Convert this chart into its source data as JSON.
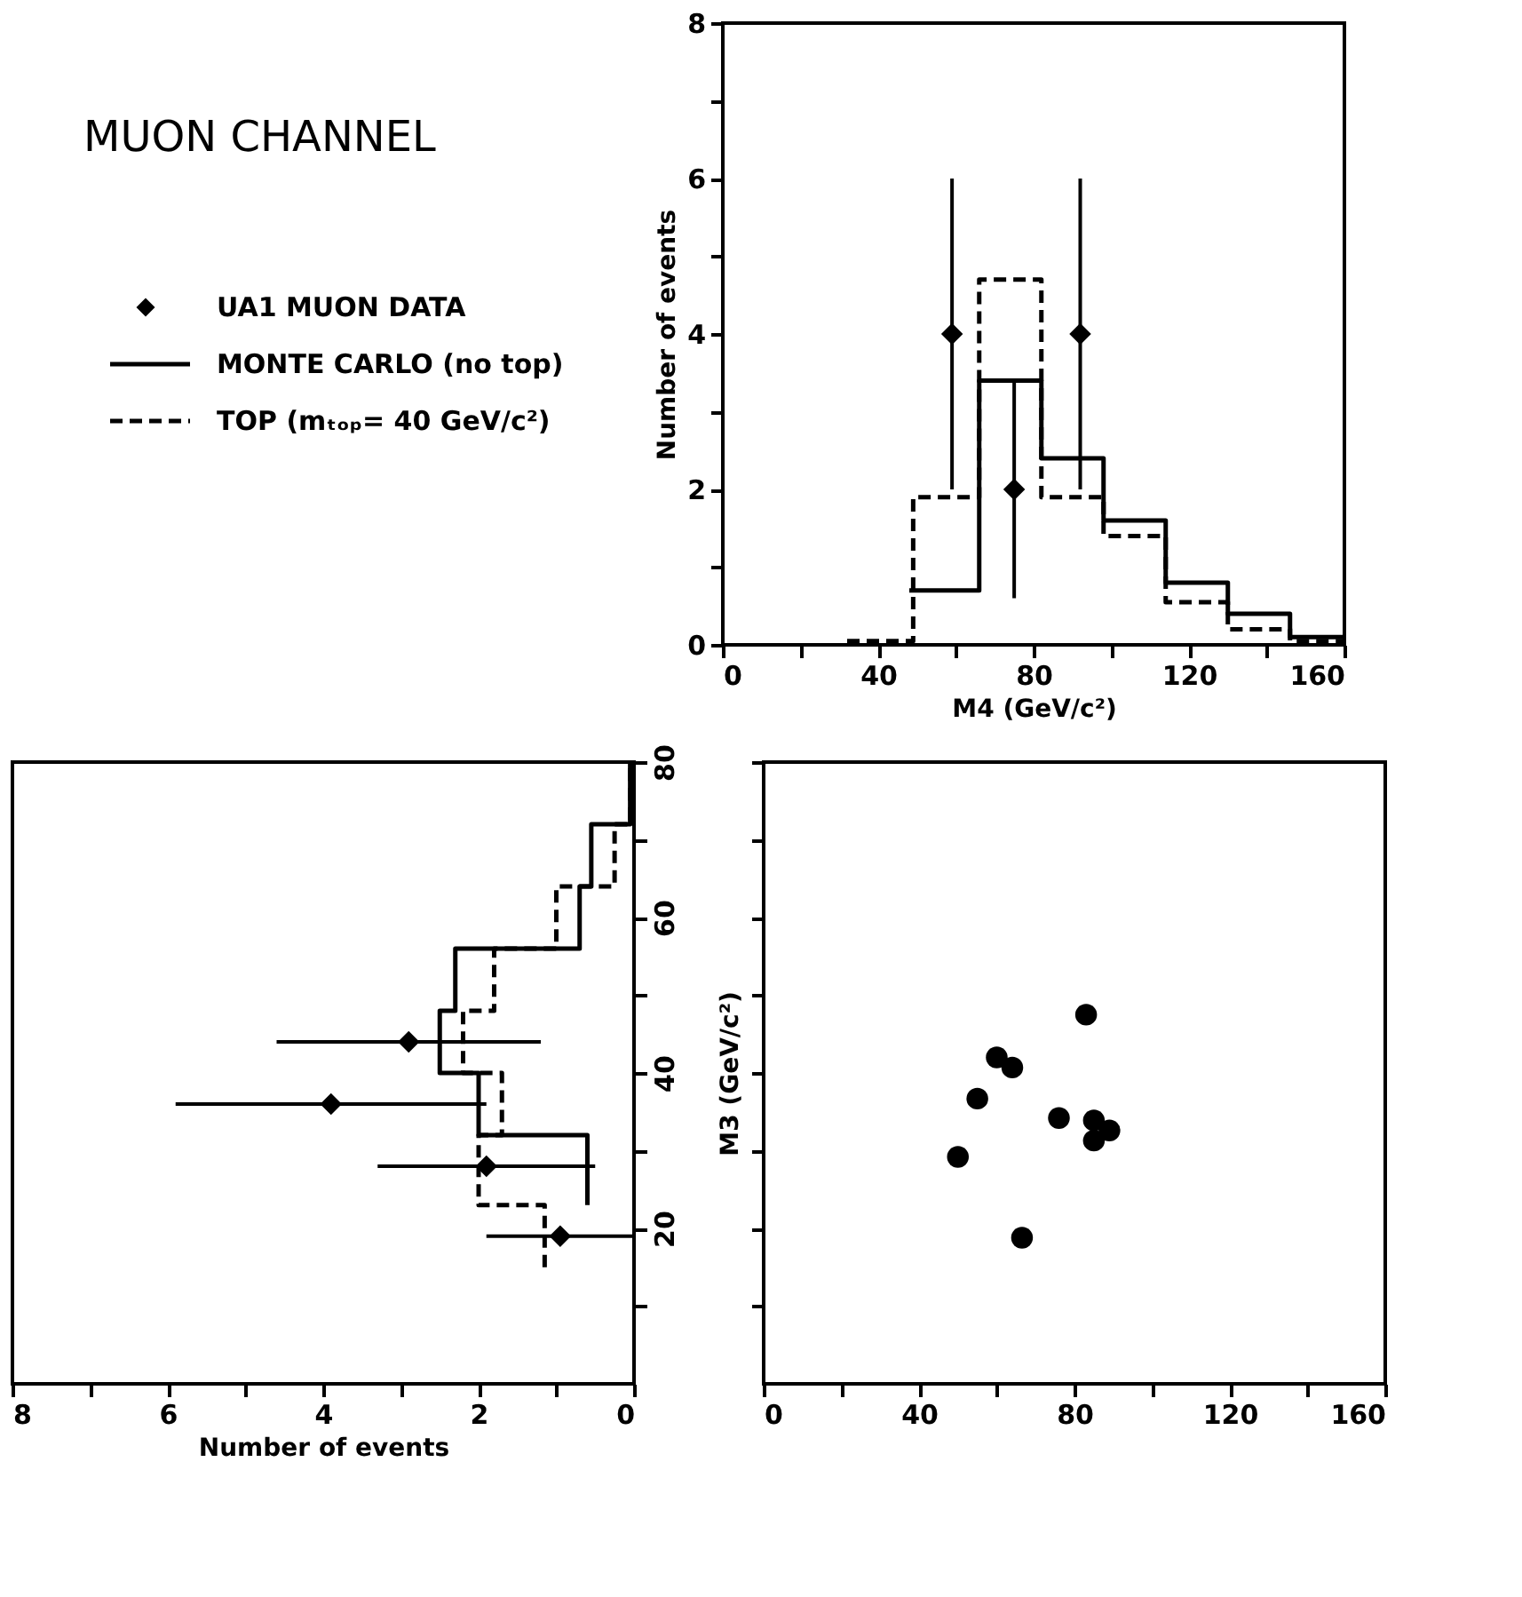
{
  "chart_data": [
    {
      "type": "step",
      "title": "MUON CHANNEL",
      "xlabel": "M4 (GeV/c²)",
      "ylabel": "Number of events",
      "legend": "left",
      "xlim": [
        0,
        160
      ],
      "ylim": [
        0,
        8
      ],
      "xticks": [
        0,
        {
          "value": 20,
          "label": null
        },
        40,
        {
          "value": 60,
          "label": null
        },
        80,
        {
          "value": 100,
          "label": null
        },
        120,
        {
          "value": 140,
          "label": null
        },
        160
      ],
      "yticks": [
        0,
        {
          "value": 1,
          "label": null
        },
        2,
        {
          "value": 3,
          "label": null
        },
        4,
        {
          "value": 5,
          "label": null
        },
        6,
        {
          "value": 7,
          "label": null
        },
        8
      ],
      "series": [
        {
          "name": "UA1 MUON DATA",
          "type": "scatter",
          "marker": "diamond",
          "color": "#000000",
          "x": [
            59,
            75,
            92
          ],
          "values": [
            4,
            2,
            4
          ],
          "errors": [
            2,
            1.4,
            2
          ]
        },
        {
          "name": "MONTE CARLO (no top)",
          "color": "#000000",
          "line_style": "solid",
          "x": [
            48,
            66,
            82,
            98,
            114,
            130,
            146,
            160
          ],
          "values": [
            0.7,
            3.4,
            2.4,
            1.6,
            0.8,
            0.4,
            0.1,
            0.1
          ]
        },
        {
          "name": "TOP (mₜₒₚ= 40 GeV/c²)",
          "color": "#000000",
          "line_style": "dashed",
          "x": [
            32,
            49,
            66,
            82,
            98,
            114,
            130,
            146,
            160
          ],
          "values": [
            0.05,
            1.9,
            4.7,
            1.9,
            1.4,
            0.55,
            0.2,
            0.05,
            0.05
          ]
        }
      ]
    },
    {
      "type": "step",
      "orientation": "horizontal",
      "xlabel": "Number of events",
      "xlim": [
        8,
        0
      ],
      "ylim": [
        0,
        80
      ],
      "xticks": [
        8,
        {
          "value": 7,
          "label": null
        },
        6,
        {
          "value": 5,
          "label": null
        },
        4,
        {
          "value": 3,
          "label": null
        },
        2,
        {
          "value": 1,
          "label": null
        },
        0
      ],
      "yticks": [
        {
          "value": 10,
          "label": null
        },
        20,
        {
          "value": 30,
          "label": null
        },
        40,
        {
          "value": 50,
          "label": null
        },
        60,
        {
          "value": 70,
          "label": null
        },
        80
      ],
      "series": [
        {
          "type": "scatter",
          "marker": "diamond",
          "color": "#000000",
          "x": [
            44,
            36,
            28,
            19
          ],
          "values": [
            2.9,
            3.9,
            1.9,
            0.95
          ],
          "errors": [
            1.7,
            2,
            1.4,
            0.95
          ]
        },
        {
          "color": "#000000",
          "line_style": "solid",
          "x": [
            23,
            32,
            40,
            48,
            56,
            64,
            72,
            80
          ],
          "values": [
            0.6,
            2.0,
            2.5,
            2.3,
            0.7,
            0.55,
            0.05,
            0.05
          ]
        },
        {
          "color": "#000000",
          "line_style": "dashed",
          "x": [
            15,
            23,
            32,
            40,
            48,
            56,
            64,
            72,
            80
          ],
          "values": [
            1.15,
            2.0,
            1.7,
            2.2,
            1.8,
            1.0,
            0.25,
            0.05,
            0.05
          ]
        }
      ]
    },
    {
      "type": "scatter",
      "ylabel": "M3 (GeV/c²)",
      "marker": "circle",
      "color": "#000000",
      "tick_labels": "x",
      "x": [
        83,
        60,
        64,
        55,
        76,
        85,
        89,
        85,
        50,
        66.5
      ],
      "values": [
        47.5,
        42,
        40.7,
        36.7,
        34.2,
        33.9,
        32.6,
        31.3,
        29.2,
        18.8
      ],
      "xlim": [
        0,
        160
      ],
      "ylim": [
        0,
        80
      ],
      "xticks": [
        0,
        {
          "value": 20,
          "label": null
        },
        40,
        {
          "value": 60,
          "label": null
        },
        80,
        {
          "value": 100,
          "label": null
        },
        120,
        {
          "value": 140,
          "label": null
        },
        160
      ],
      "yticks": [
        {
          "value": 10,
          "label": null
        },
        20,
        {
          "value": 30,
          "label": null
        },
        40,
        {
          "value": 50,
          "label": null
        },
        60,
        {
          "value": 70,
          "label": null
        },
        80
      ]
    }
  ]
}
